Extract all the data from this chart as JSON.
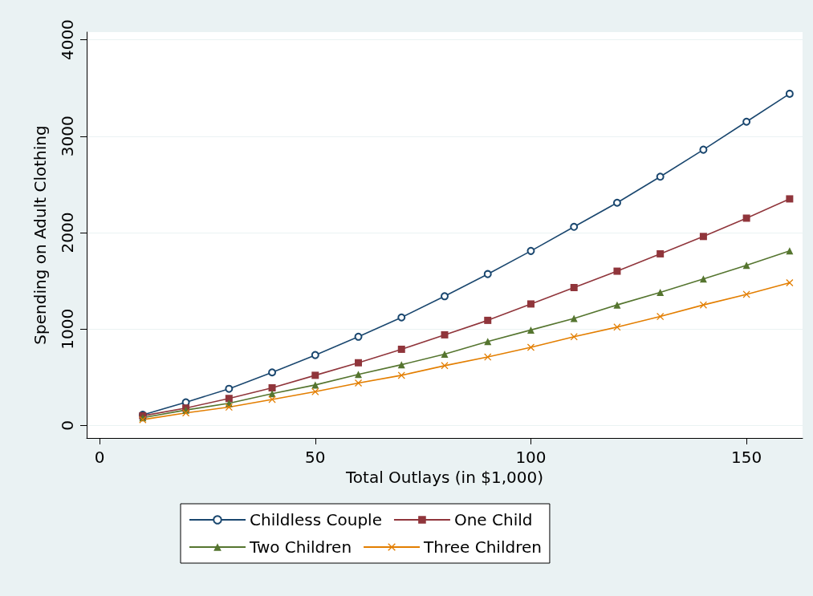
{
  "chart_data": {
    "type": "line",
    "xlabel": "Total Outlays (in $1,000)",
    "ylabel": "Spending on Adult Clothing",
    "x": [
      10,
      20,
      30,
      40,
      50,
      60,
      70,
      80,
      90,
      100,
      110,
      120,
      130,
      140,
      150,
      160
    ],
    "series": [
      {
        "name": "Childless Couple",
        "color": "#1a476f",
        "marker": "circle",
        "values": [
          110,
          240,
          380,
          550,
          730,
          920,
          1120,
          1340,
          1570,
          1810,
          2060,
          2310,
          2580,
          2860,
          3150,
          3440
        ]
      },
      {
        "name": "One Child",
        "color": "#90353b",
        "marker": "square",
        "values": [
          100,
          180,
          280,
          390,
          520,
          650,
          790,
          940,
          1090,
          1260,
          1430,
          1600,
          1780,
          1960,
          2150,
          2350
        ]
      },
      {
        "name": "Two Children",
        "color": "#55752f",
        "marker": "triangle",
        "values": [
          80,
          160,
          230,
          330,
          420,
          530,
          630,
          740,
          870,
          990,
          1110,
          1250,
          1380,
          1520,
          1660,
          1810
        ]
      },
      {
        "name": "Three Children",
        "color": "#e37e00",
        "marker": "cross",
        "values": [
          60,
          130,
          190,
          270,
          350,
          440,
          520,
          620,
          710,
          810,
          920,
          1020,
          1130,
          1250,
          1360,
          1480
        ]
      }
    ],
    "xlim": [
      -3,
      163
    ],
    "xticks": [
      0,
      50,
      100,
      150
    ],
    "ylim": [
      -130,
      4080
    ],
    "yticks": [
      0,
      1000,
      2000,
      3000,
      4000
    ],
    "grid": "y",
    "legend": "bottom",
    "line_style": "solid"
  }
}
